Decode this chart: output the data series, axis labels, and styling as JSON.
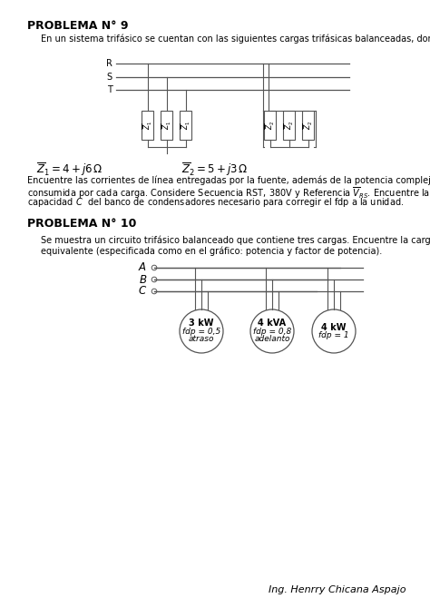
{
  "page_bg": "#ffffff",
  "title1": "PROBLEMA N° 9",
  "text1": "En un sistema trifásico se cuentan con las siguientes cargas trifásicas balanceadas, donde:",
  "z1_label": "$\\overline{Z}_1 = 4 + j6\\,\\Omega$",
  "z2_label": "$\\overline{Z}_2 = 5 + j3\\,\\Omega$",
  "text2_l1": "Encuentre las corrientes de línea entregadas por la fuente, además de la potencia compleja",
  "text2_l2": "consumida por cada carga. Considere Secuencia RST, 380V y Referencia $\\overline{V}_{RS}$. Encuentre la",
  "text2_l3": "capacidad $C$  del banco de condensadores necesario para corregir el fdp a la unidad.",
  "title2": "PROBLEMA N° 10",
  "text3_l1": "Se muestra un circuito trifásico balanceado que contiene tres cargas. Encuentre la carga",
  "text3_l2": "equivalente (especificada como en el gráfico: potencia y factor de potencia).",
  "load1_l1": "3 kW",
  "load1_l2": "fdp = 0,5",
  "load1_l3": "atraso",
  "load2_l1": "4 kVA",
  "load2_l2": "fdp = 0,8",
  "load2_l3": "adelanto",
  "load3_l1": "4 kW",
  "load3_l2": "fdp = 1",
  "load3_l3": "",
  "author": "Ing. Henrry Chicana Aspajo",
  "line_color": "#555555"
}
